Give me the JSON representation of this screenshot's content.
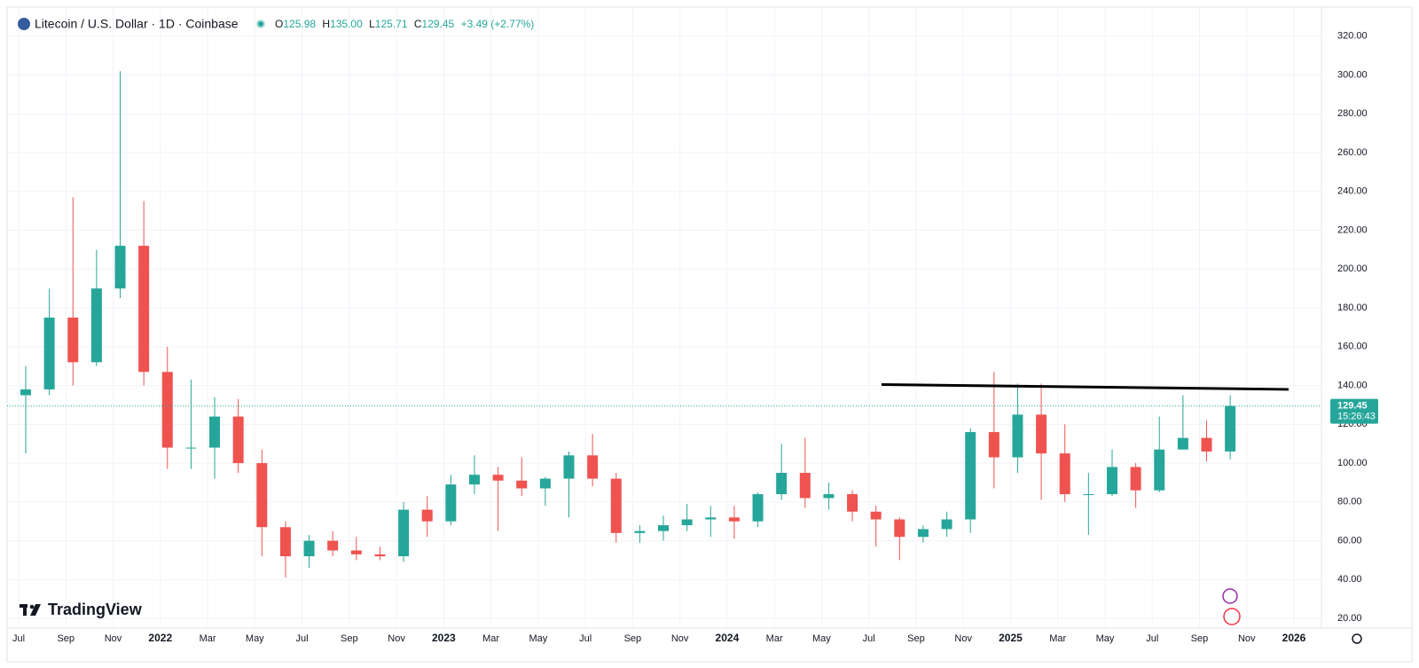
{
  "header": {
    "symbol": "Litecoin / U.S. Dollar · 1D · Coinbase",
    "open_label": "O",
    "open": "125.98",
    "high_label": "H",
    "high": "135.00",
    "low_label": "L",
    "low": "125.71",
    "close_label": "C",
    "close": "129.45",
    "change": "+3.49 (+2.77%)"
  },
  "branding": "TradingView",
  "chart_data": {
    "type": "candlestick",
    "x": [
      "2021-07",
      "2021-08",
      "2021-09",
      "2021-10",
      "2021-11",
      "2021-12",
      "2022-01",
      "2022-02",
      "2022-03",
      "2022-04",
      "2022-05",
      "2022-06",
      "2022-07",
      "2022-08",
      "2022-09",
      "2022-10",
      "2022-11",
      "2022-12",
      "2023-01",
      "2023-02",
      "2023-03",
      "2023-04",
      "2023-05",
      "2023-06",
      "2023-07",
      "2023-08",
      "2023-09",
      "2023-10",
      "2023-11",
      "2023-12",
      "2024-01",
      "2024-02",
      "2024-03",
      "2024-04",
      "2024-05",
      "2024-06",
      "2024-07",
      "2024-08",
      "2024-09",
      "2024-10",
      "2024-11",
      "2024-12",
      "2025-01",
      "2025-02",
      "2025-03",
      "2025-04",
      "2025-05",
      "2025-06",
      "2025-07",
      "2025-08",
      "2025-09",
      "2025-10"
    ],
    "open": [
      135,
      138,
      175,
      152,
      190,
      212,
      147,
      108,
      108,
      124,
      100,
      67,
      52,
      60,
      55,
      53,
      52,
      76,
      70,
      89,
      94,
      91,
      87,
      92,
      104,
      92,
      64,
      65,
      68,
      71,
      72,
      70,
      84,
      95,
      82,
      84,
      75,
      71,
      62,
      66,
      71,
      116,
      103,
      125,
      105,
      84,
      84,
      98,
      86,
      107,
      113,
      106
    ],
    "high": [
      150,
      190,
      237,
      210,
      302,
      235,
      160,
      143,
      134,
      133,
      107,
      70,
      63,
      65,
      62,
      57,
      80,
      83,
      94,
      104,
      98,
      103,
      93,
      106,
      115,
      95,
      68,
      73,
      79,
      78,
      78,
      85,
      110,
      113,
      90,
      86,
      78,
      72,
      68,
      75,
      118,
      147,
      141,
      141,
      120,
      95,
      107,
      100,
      124,
      135,
      122,
      135
    ],
    "low": [
      105,
      135,
      140,
      150,
      185,
      140,
      97,
      97,
      92,
      95,
      52,
      41,
      46,
      52,
      50,
      50,
      49,
      62,
      68,
      84,
      65,
      83,
      78,
      72,
      88,
      59,
      59,
      60,
      65,
      62,
      61,
      67,
      81,
      77,
      76,
      70,
      57,
      50,
      59,
      62,
      64,
      87,
      95,
      81,
      80,
      63,
      83,
      77,
      85,
      107,
      101,
      102
    ],
    "close": [
      138,
      175,
      152,
      190,
      212,
      147,
      108,
      108,
      124,
      100,
      67,
      52,
      60,
      55,
      53,
      52,
      76,
      70,
      89,
      94,
      91,
      87,
      92,
      104,
      92,
      64,
      65,
      68,
      71,
      72,
      70,
      84,
      95,
      82,
      84,
      75,
      71,
      62,
      66,
      71,
      116,
      103,
      125,
      105,
      84,
      84,
      98,
      86,
      107,
      113,
      106,
      129.45
    ],
    "up_color": "#26a69a",
    "down_color": "#ef5350",
    "x_labels": [
      "Jul",
      "Sep",
      "Nov",
      "2022",
      "Mar",
      "May",
      "Jul",
      "Sep",
      "Nov",
      "2023",
      "Mar",
      "May",
      "Jul",
      "Sep",
      "Nov",
      "2024",
      "Mar",
      "May",
      "Jul",
      "Sep",
      "Nov",
      "2025",
      "Mar",
      "May",
      "Jul",
      "Sep",
      "Nov",
      "2026"
    ],
    "ylim": [
      15,
      335
    ],
    "yticks": [
      {
        "value": 20,
        "label": "20.00"
      },
      {
        "value": 40,
        "label": "40.00"
      },
      {
        "value": 60,
        "label": "60.00"
      },
      {
        "value": 80,
        "label": "80.00"
      },
      {
        "value": 100,
        "label": "100.00"
      },
      {
        "value": 120,
        "label": "120.00"
      },
      {
        "value": 140,
        "label": "140.00"
      },
      {
        "value": 160,
        "label": "160.00"
      },
      {
        "value": 180,
        "label": "180.00"
      },
      {
        "value": 200,
        "label": "200.00"
      },
      {
        "value": 220,
        "label": "220.00"
      },
      {
        "value": 240,
        "label": "240.00"
      },
      {
        "value": 260,
        "label": "260.00"
      },
      {
        "value": 280,
        "label": "280.00"
      },
      {
        "value": 300,
        "label": "300.00"
      },
      {
        "value": 320,
        "label": "320.00"
      }
    ],
    "grid": true,
    "last_price": {
      "value": 129.45,
      "label": "129.45"
    },
    "countdown": "15:26:43",
    "trend_line": {
      "values": [
        140.5,
        138
      ],
      "color": "#000000"
    }
  }
}
